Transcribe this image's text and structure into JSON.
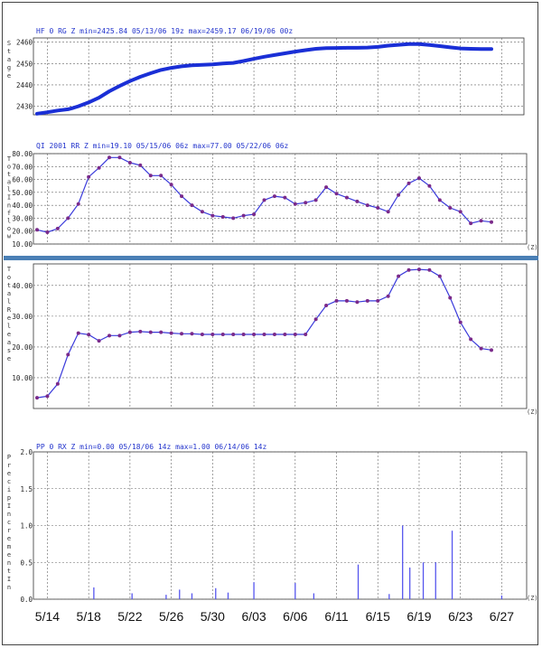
{
  "colors": {
    "stage_line": "#1a2fd6",
    "series_line": "#3a3adb",
    "series_marker": "#7a2a8a",
    "bar": "#5555ee",
    "header_text": "#2233cc",
    "divider": "#4a7fb5",
    "grid": "#666666"
  },
  "x_dates": [
    "5/14",
    "5/18",
    "5/22",
    "5/26",
    "5/30",
    "6/03",
    "6/06",
    "6/11",
    "6/15",
    "6/19",
    "6/23",
    "6/27"
  ],
  "chart_data": [
    {
      "id": "stage",
      "type": "line",
      "header": "HF 0 RG Z min=2425.84 05/13/06 19z max=2459.17 06/19/06 00z",
      "ylabel": "S t a g e",
      "y_ticks": [
        "2460",
        "2450",
        "2440",
        "2430"
      ],
      "ylim": [
        2426,
        2462
      ],
      "series": [
        {
          "x": [
            0,
            1,
            2,
            3,
            3.5,
            4,
            5,
            6,
            7,
            8,
            9,
            10,
            11,
            12,
            13,
            14,
            15,
            16,
            17,
            18,
            19,
            20,
            21,
            22,
            23,
            24,
            25,
            26,
            27,
            28,
            29,
            30,
            31,
            32,
            33,
            34,
            35,
            36,
            37,
            38,
            39,
            40,
            41,
            42,
            43,
            44
          ],
          "values": [
            2426.5,
            2427.2,
            2428,
            2428.6,
            2429.2,
            2430,
            2431.8,
            2434,
            2437,
            2439.5,
            2441.8,
            2443.8,
            2445.5,
            2447,
            2448,
            2448.7,
            2449.2,
            2449.4,
            2449.6,
            2450,
            2450.3,
            2451.2,
            2452.2,
            2453.2,
            2454,
            2454.8,
            2455.6,
            2456.3,
            2456.9,
            2457.2,
            2457.3,
            2457.4,
            2457.4,
            2457.5,
            2457.8,
            2458.4,
            2458.8,
            2459.17,
            2459.1,
            2458.7,
            2458.2,
            2457.6,
            2457.1,
            2456.9,
            2456.8,
            2456.8
          ]
        }
      ]
    },
    {
      "id": "inflow",
      "type": "line",
      "header": "QI 2001 RR Z min=19.10 05/15/06 06z max=77.00 05/22/06 06z",
      "ylabel": "T o t a l I n f l o w",
      "y_ticks": [
        "80.00",
        "70.00",
        "60.00",
        "50.00",
        "40.00",
        "30.00",
        "20.00",
        "10.00"
      ],
      "ylim": [
        10,
        80
      ],
      "corner_label": "(Z)",
      "series": [
        {
          "x": [
            0,
            1,
            2,
            3,
            4,
            5,
            6,
            7,
            8,
            9,
            10,
            11,
            12,
            13,
            14,
            15,
            16,
            17,
            18,
            19,
            20,
            21,
            22,
            23,
            24,
            25,
            26,
            27,
            28,
            29,
            30,
            31,
            32,
            33,
            34,
            35,
            36,
            37,
            38,
            39,
            40,
            41,
            42,
            43,
            44
          ],
          "values": [
            21,
            19.1,
            22,
            30,
            41,
            62,
            69,
            77,
            77,
            73,
            71,
            63,
            63,
            56,
            47,
            40,
            35,
            32,
            31,
            30,
            32,
            33,
            44,
            47,
            46,
            41,
            42,
            44,
            54,
            49,
            46,
            43,
            40,
            38,
            35,
            48,
            57,
            61,
            55,
            44,
            38,
            35,
            26,
            28,
            27
          ]
        }
      ]
    },
    {
      "id": "release",
      "type": "line",
      "header": "",
      "ylabel": "T o t a l R e l e a s e",
      "y_ticks": [
        "40.00",
        "30.00",
        "20.00",
        "10.00"
      ],
      "ylim": [
        0,
        47
      ],
      "corner_label": "(Z)",
      "series": [
        {
          "x": [
            0,
            1,
            2,
            3,
            4,
            5,
            6,
            7,
            8,
            9,
            10,
            11,
            12,
            13,
            14,
            15,
            16,
            17,
            18,
            19,
            20,
            21,
            22,
            23,
            24,
            25,
            26,
            27,
            28,
            29,
            30,
            31,
            32,
            33,
            34,
            35,
            36,
            37,
            38,
            39,
            40,
            41,
            42,
            43,
            44
          ],
          "values": [
            3.5,
            4,
            8,
            17.5,
            24.5,
            24,
            22,
            23.7,
            23.7,
            24.8,
            25,
            24.8,
            24.8,
            24.5,
            24.3,
            24.3,
            24.1,
            24.1,
            24.1,
            24.1,
            24.1,
            24.1,
            24.1,
            24.1,
            24.1,
            24.1,
            24.1,
            29,
            33.5,
            35,
            35,
            34.6,
            35,
            35,
            36.5,
            43,
            45,
            45.2,
            45,
            43,
            36,
            28,
            22.5,
            19.5,
            19
          ]
        }
      ]
    },
    {
      "id": "precip",
      "type": "bar",
      "header": "PP 0 RX Z min=0.00 05/18/06 14z max=1.00 06/14/06 14z",
      "ylabel": "P r e c i p I n c r e m e n t I n",
      "y_ticks": [
        "2.0",
        "1.5",
        "1.0",
        "0.5",
        "0.0"
      ],
      "ylim": [
        0,
        2
      ],
      "corner_label": "(Z)",
      "bars": {
        "x": [
          5.5,
          9.2,
          12.5,
          13.8,
          15.0,
          17.3,
          18.5,
          21.0,
          25.0,
          26.8,
          31.1,
          34.1,
          35.4,
          36.1,
          37.4,
          38.6,
          40.2,
          45.0
        ],
        "values": [
          0.16,
          0.08,
          0.06,
          0.13,
          0.08,
          0.15,
          0.09,
          0.23,
          0.22,
          0.08,
          0.47,
          0.07,
          1.0,
          0.43,
          0.5,
          0.5,
          0.93,
          0.05
        ]
      }
    }
  ]
}
